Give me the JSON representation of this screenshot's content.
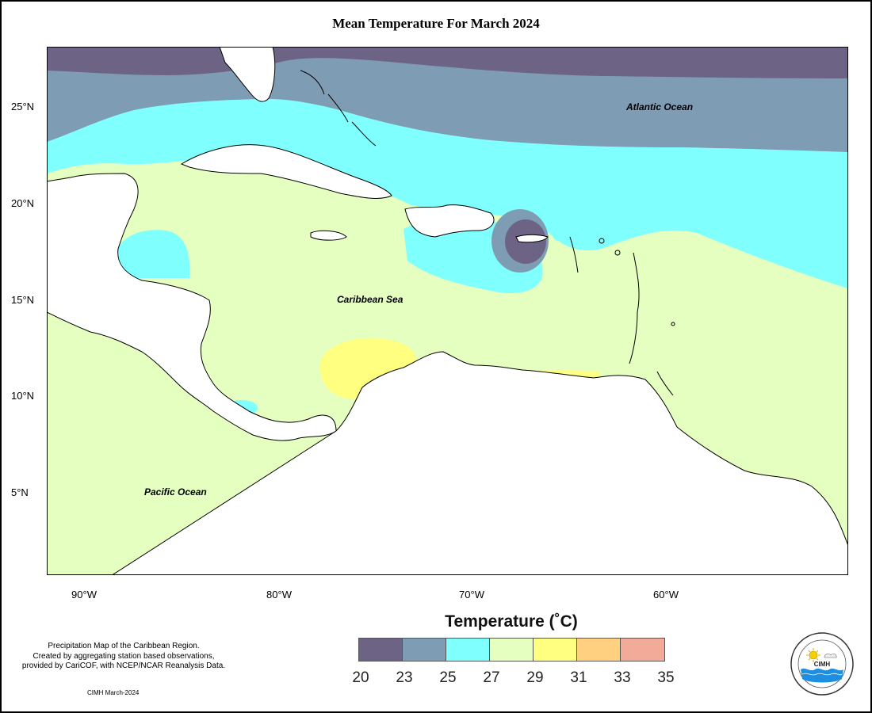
{
  "title": "Mean Temperature For March 2024",
  "map": {
    "y_ticks": [
      "25°N",
      "20°N",
      "15°N",
      "10°N",
      "5°N"
    ],
    "x_ticks": [
      "90°W",
      "80°W",
      "70°W",
      "60°W"
    ],
    "labels": {
      "atlantic": "Atlantic Ocean",
      "caribbean": "Caribbean Sea",
      "pacific": "Pacific Ocean"
    }
  },
  "legend": {
    "title": "Temperature (˚C)",
    "colors": [
      "#6d6485",
      "#7f9cb5",
      "#80ffff",
      "#e4ffc0",
      "#ffff80",
      "#ffd080",
      "#f2aa99"
    ],
    "ticks": [
      "20",
      "23",
      "25",
      "27",
      "29",
      "31",
      "33",
      "35"
    ]
  },
  "note": {
    "line1": "Precipitation Map of the Caribbean Region.",
    "line2": "Created by aggregating station based observations,",
    "line3": "provided by CariCOF, with NCEP/NCAR Reanalysis Data."
  },
  "credit": "CIMH March-2024",
  "logo": {
    "text": "CIMH",
    "icons": [
      "sun-icon",
      "cloud-icon",
      "waves-icon"
    ]
  }
}
